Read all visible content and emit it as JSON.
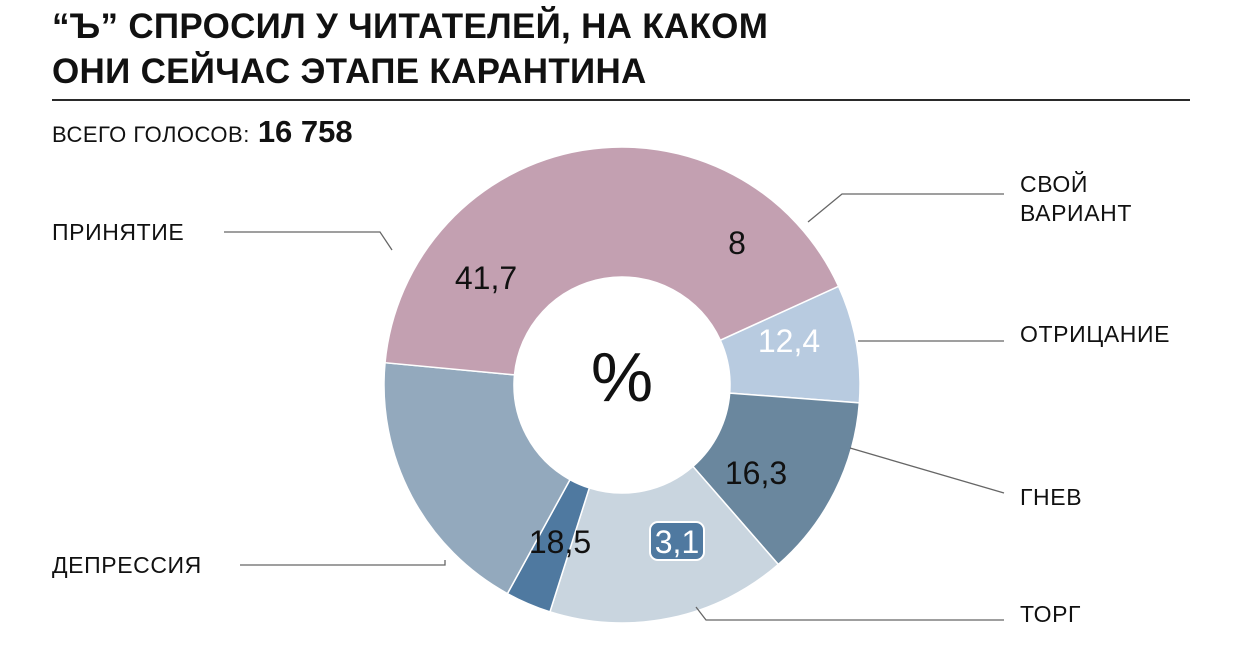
{
  "title_lines": [
    "“Ъ” СПРОСИЛ У ЧИТАТЕЛЕЙ, НА КАКОМ",
    "ОНИ СЕЙЧАС ЭТАПЕ КАРАНТИНА"
  ],
  "total": {
    "label": "ВСЕГО ГОЛОСОВ:",
    "value": "16 758"
  },
  "center_symbol": "%",
  "chart_data": {
    "type": "pie",
    "title": "“Ъ” СПРОСИЛ У ЧИТАТЕЛЕЙ, НА КАКОМ ОНИ СЕЙЧАС ЭТАПЕ КАРАНТИНА",
    "unit": "%",
    "donut": true,
    "slices": [
      {
        "name": "СВОЙ ВАРИАНТ",
        "value": 8,
        "label": "8",
        "color": "#b8cbe0",
        "label_color": "#111111"
      },
      {
        "name": "ОТРИЦАНИЕ",
        "value": 12.4,
        "label": "12,4",
        "color": "#6a879e",
        "label_color": "#ffffff"
      },
      {
        "name": "ГНЕВ",
        "value": 16.3,
        "label": "16,3",
        "color": "#c9d5df",
        "label_color": "#111111"
      },
      {
        "name": "ТОРГ",
        "value": 3.1,
        "label": "3,1",
        "color": "#4f79a0",
        "label_color": "#ffffff"
      },
      {
        "name": "ДЕПРЕССИЯ",
        "value": 18.5,
        "label": "18,5",
        "color": "#93a9bd",
        "label_color": "#111111"
      },
      {
        "name": "ПРИНЯТИЕ",
        "value": 41.7,
        "label": "41,7",
        "color": "#c3a0b1",
        "label_color": "#111111"
      }
    ]
  }
}
